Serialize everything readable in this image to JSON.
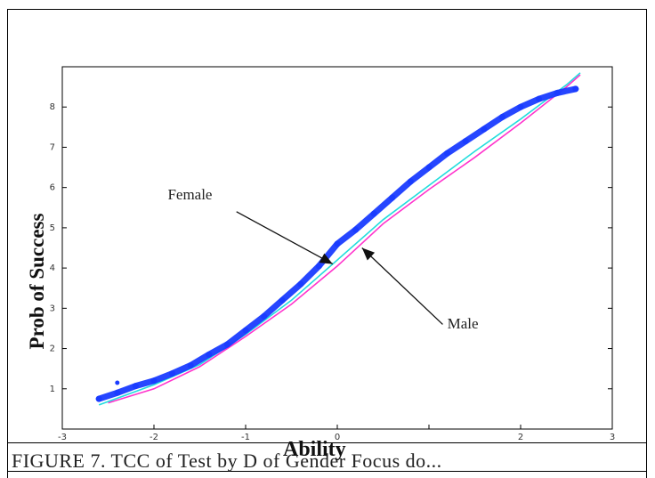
{
  "chart_data": {
    "type": "line",
    "title": "",
    "xlabel": "Ability",
    "ylabel": "Prob of Success",
    "xlim": [
      -3,
      3
    ],
    "ylim": [
      0,
      9
    ],
    "xticks": [
      -3,
      -2,
      -1,
      0,
      1,
      2,
      3
    ],
    "xtick_labels": [
      "-3",
      "-2",
      "-1",
      "0",
      "",
      "2",
      "3"
    ],
    "yticks": [
      0,
      1,
      2,
      3,
      4,
      5,
      6,
      7,
      8,
      9
    ],
    "ytick_labels": [
      "",
      "1",
      "2",
      "3",
      "4",
      "5",
      "6",
      "7",
      "8",
      ""
    ],
    "grid": false,
    "series": [
      {
        "color": "#1a3cff",
        "style": "thick-scatter",
        "x": [
          -2.6,
          -2.4,
          -2.2,
          -2.0,
          -1.8,
          -1.6,
          -1.4,
          -1.2,
          -1.0,
          -0.8,
          -0.6,
          -0.4,
          -0.2,
          0.0,
          0.2,
          0.4,
          0.6,
          0.8,
          1.0,
          1.2,
          1.4,
          1.6,
          1.8,
          2.0,
          2.2,
          2.4,
          2.6
        ],
        "y": [
          0.75,
          0.9,
          1.07,
          1.2,
          1.38,
          1.58,
          1.85,
          2.1,
          2.45,
          2.8,
          3.2,
          3.6,
          4.05,
          4.6,
          4.95,
          5.35,
          5.75,
          6.15,
          6.5,
          6.85,
          7.15,
          7.45,
          7.75,
          8.0,
          8.2,
          8.35,
          8.45
        ]
      },
      {
        "color": "#ff33cc",
        "style": "line",
        "x": [
          -2.5,
          -2.0,
          -1.5,
          -1.0,
          -0.5,
          0.0,
          0.5,
          1.0,
          1.5,
          2.0,
          2.5,
          2.65
        ],
        "y": [
          0.65,
          1.0,
          1.55,
          2.3,
          3.1,
          4.05,
          5.1,
          5.95,
          6.75,
          7.6,
          8.5,
          8.8
        ]
      },
      {
        "color": "#22dddd",
        "style": "line",
        "x": [
          -2.6,
          -2.0,
          -1.5,
          -1.0,
          -0.5,
          0.0,
          0.5,
          1.0,
          1.5,
          2.0,
          2.5,
          2.65
        ],
        "y": [
          0.6,
          1.1,
          1.6,
          2.35,
          3.2,
          4.2,
          5.2,
          6.05,
          6.9,
          7.7,
          8.55,
          8.85
        ]
      }
    ],
    "extra_points": [
      {
        "x": -2.4,
        "y": 1.15
      }
    ],
    "annotations": [
      {
        "text": "Female",
        "label_x": -1.85,
        "label_y": 5.7,
        "tail_x": -1.1,
        "tail_y": 5.4,
        "head_x": -0.05,
        "head_y": 4.1
      },
      {
        "text": "Male",
        "label_x": 1.2,
        "label_y": 2.5,
        "tail_x": 1.15,
        "tail_y": 2.6,
        "head_x": 0.27,
        "head_y": 4.5
      }
    ]
  },
  "caption": "FIGURE 7. TCC of Test by D   of Gender Focus do..."
}
